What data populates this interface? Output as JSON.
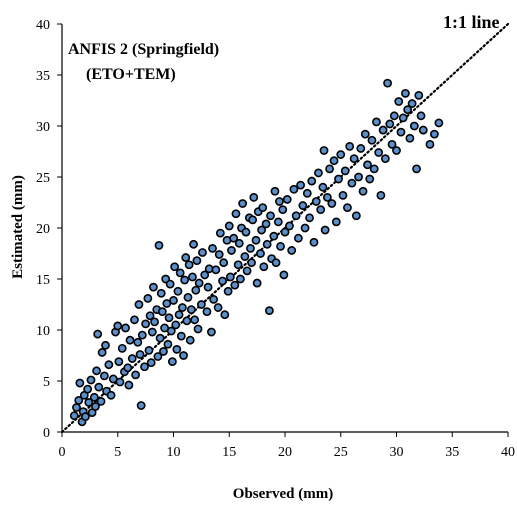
{
  "chart_data": {
    "type": "scatter",
    "title": "ANFIS 2 (Springfield)",
    "subtitle": "(ETO+TEM)",
    "xlabel": "Observed (mm)",
    "ylabel": "Estimated (mm)",
    "xlim": [
      0,
      40
    ],
    "ylim": [
      0,
      40
    ],
    "xticks": [
      "0",
      "5",
      "10",
      "15",
      "20",
      "25",
      "30",
      "35",
      "40"
    ],
    "yticks": [
      "0",
      "5",
      "10",
      "15",
      "20",
      "25",
      "30",
      "35",
      "40"
    ],
    "grid": false,
    "legend": "none",
    "reference_line": {
      "label": "1:1 line",
      "from": [
        0,
        0
      ],
      "to": [
        40,
        40
      ],
      "style": "dotted"
    },
    "marker_color": "#5b8fc9",
    "marker_edge": "#000000",
    "series": [
      {
        "points": [
          [
            1.1,
            1.6
          ],
          [
            1.3,
            2.4
          ],
          [
            1.5,
            3.1
          ],
          [
            1.6,
            4.8
          ],
          [
            1.8,
            1.0
          ],
          [
            1.9,
            2.0
          ],
          [
            2.0,
            3.6
          ],
          [
            2.1,
            1.5
          ],
          [
            2.3,
            4.2
          ],
          [
            2.4,
            2.9
          ],
          [
            2.6,
            5.1
          ],
          [
            2.7,
            1.9
          ],
          [
            2.9,
            3.4
          ],
          [
            3.0,
            2.5
          ],
          [
            3.1,
            6.0
          ],
          [
            3.2,
            9.6
          ],
          [
            3.3,
            4.4
          ],
          [
            3.5,
            3.0
          ],
          [
            3.6,
            7.8
          ],
          [
            3.8,
            5.5
          ],
          [
            3.9,
            8.5
          ],
          [
            4.0,
            4.0
          ],
          [
            4.2,
            6.6
          ],
          [
            4.4,
            3.6
          ],
          [
            4.6,
            5.2
          ],
          [
            4.8,
            9.8
          ],
          [
            5.0,
            10.4
          ],
          [
            5.1,
            6.9
          ],
          [
            5.2,
            4.9
          ],
          [
            5.4,
            8.2
          ],
          [
            5.6,
            5.9
          ],
          [
            5.7,
            10.2
          ],
          [
            5.9,
            6.3
          ],
          [
            6.0,
            4.6
          ],
          [
            6.1,
            9.0
          ],
          [
            6.3,
            7.2
          ],
          [
            6.5,
            11.0
          ],
          [
            6.6,
            5.6
          ],
          [
            6.8,
            8.8
          ],
          [
            6.9,
            12.5
          ],
          [
            7.0,
            7.6
          ],
          [
            7.1,
            2.6
          ],
          [
            7.2,
            9.5
          ],
          [
            7.4,
            6.4
          ],
          [
            7.5,
            10.6
          ],
          [
            7.7,
            13.1
          ],
          [
            7.8,
            8.0
          ],
          [
            7.9,
            11.4
          ],
          [
            8.0,
            6.8
          ],
          [
            8.1,
            9.8
          ],
          [
            8.2,
            14.2
          ],
          [
            8.3,
            10.8
          ],
          [
            8.5,
            12.0
          ],
          [
            8.6,
            7.4
          ],
          [
            8.7,
            18.3
          ],
          [
            8.8,
            9.2
          ],
          [
            8.9,
            13.6
          ],
          [
            9.0,
            11.8
          ],
          [
            9.1,
            7.9
          ],
          [
            9.2,
            10.2
          ],
          [
            9.3,
            15.0
          ],
          [
            9.4,
            12.6
          ],
          [
            9.5,
            8.6
          ],
          [
            9.6,
            11.2
          ],
          [
            9.7,
            14.5
          ],
          [
            9.8,
            9.9
          ],
          [
            9.9,
            6.9
          ],
          [
            10.0,
            12.9
          ],
          [
            10.1,
            16.2
          ],
          [
            10.2,
            10.5
          ],
          [
            10.3,
            8.1
          ],
          [
            10.4,
            13.8
          ],
          [
            10.5,
            11.5
          ],
          [
            10.6,
            15.6
          ],
          [
            10.7,
            9.4
          ],
          [
            10.8,
            12.2
          ],
          [
            10.9,
            7.5
          ],
          [
            11.0,
            14.9
          ],
          [
            11.1,
            17.1
          ],
          [
            11.2,
            10.9
          ],
          [
            11.3,
            13.2
          ],
          [
            11.4,
            16.4
          ],
          [
            11.5,
            9.0
          ],
          [
            11.6,
            12.0
          ],
          [
            11.7,
            15.2
          ],
          [
            11.8,
            18.4
          ],
          [
            11.9,
            11.0
          ],
          [
            12.0,
            13.9
          ],
          [
            12.1,
            16.8
          ],
          [
            12.2,
            10.1
          ],
          [
            12.3,
            14.6
          ],
          [
            12.5,
            12.5
          ],
          [
            12.6,
            17.6
          ],
          [
            12.8,
            15.4
          ],
          [
            13.0,
            11.8
          ],
          [
            13.1,
            14.2
          ],
          [
            13.2,
            16.0
          ],
          [
            13.4,
            9.8
          ],
          [
            13.5,
            18.0
          ],
          [
            13.6,
            13.0
          ],
          [
            13.8,
            15.9
          ],
          [
            14.0,
            12.2
          ],
          [
            14.1,
            17.4
          ],
          [
            14.2,
            19.5
          ],
          [
            14.4,
            14.8
          ],
          [
            14.5,
            16.6
          ],
          [
            14.6,
            11.5
          ],
          [
            14.8,
            18.8
          ],
          [
            14.9,
            13.8
          ],
          [
            15.0,
            20.2
          ],
          [
            15.1,
            15.2
          ],
          [
            15.2,
            17.8
          ],
          [
            15.4,
            19.0
          ],
          [
            15.5,
            14.4
          ],
          [
            15.6,
            21.4
          ],
          [
            15.8,
            16.4
          ],
          [
            15.9,
            18.5
          ],
          [
            16.0,
            15.0
          ],
          [
            16.1,
            20.0
          ],
          [
            16.2,
            22.4
          ],
          [
            16.4,
            17.2
          ],
          [
            16.5,
            19.6
          ],
          [
            16.6,
            15.8
          ],
          [
            16.8,
            21.0
          ],
          [
            16.9,
            18.0
          ],
          [
            17.0,
            16.6
          ],
          [
            17.1,
            20.8
          ],
          [
            17.2,
            23.0
          ],
          [
            17.4,
            18.8
          ],
          [
            17.5,
            14.6
          ],
          [
            17.6,
            21.6
          ],
          [
            17.8,
            17.5
          ],
          [
            17.9,
            19.8
          ],
          [
            18.0,
            22.0
          ],
          [
            18.1,
            16.2
          ],
          [
            18.3,
            20.4
          ],
          [
            18.4,
            18.4
          ],
          [
            18.6,
            11.9
          ],
          [
            18.7,
            21.2
          ],
          [
            18.8,
            17.0
          ],
          [
            19.0,
            19.2
          ],
          [
            19.1,
            23.6
          ],
          [
            19.2,
            16.6
          ],
          [
            19.4,
            20.6
          ],
          [
            19.5,
            22.6
          ],
          [
            19.6,
            18.2
          ],
          [
            19.8,
            21.8
          ],
          [
            19.9,
            15.4
          ],
          [
            20.0,
            19.6
          ],
          [
            20.2,
            22.8
          ],
          [
            20.4,
            20.2
          ],
          [
            20.6,
            17.8
          ],
          [
            20.8,
            23.8
          ],
          [
            21.0,
            21.2
          ],
          [
            21.2,
            19.0
          ],
          [
            21.4,
            24.2
          ],
          [
            21.6,
            22.2
          ],
          [
            21.8,
            20.0
          ],
          [
            22.0,
            23.4
          ],
          [
            22.2,
            21.0
          ],
          [
            22.4,
            24.6
          ],
          [
            22.6,
            18.6
          ],
          [
            22.8,
            22.6
          ],
          [
            23.0,
            25.4
          ],
          [
            23.2,
            21.8
          ],
          [
            23.4,
            24.0
          ],
          [
            23.5,
            27.6
          ],
          [
            23.6,
            19.8
          ],
          [
            23.8,
            23.0
          ],
          [
            24.0,
            25.8
          ],
          [
            24.2,
            22.4
          ],
          [
            24.4,
            26.6
          ],
          [
            24.6,
            20.6
          ],
          [
            24.8,
            24.8
          ],
          [
            25.0,
            27.2
          ],
          [
            25.2,
            23.2
          ],
          [
            25.4,
            25.6
          ],
          [
            25.6,
            22.0
          ],
          [
            25.8,
            28.0
          ],
          [
            26.0,
            24.4
          ],
          [
            26.2,
            26.8
          ],
          [
            26.4,
            21.2
          ],
          [
            26.6,
            25.0
          ],
          [
            26.8,
            27.8
          ],
          [
            27.0,
            23.6
          ],
          [
            27.2,
            29.2
          ],
          [
            27.4,
            26.2
          ],
          [
            27.6,
            24.8
          ],
          [
            27.8,
            28.6
          ],
          [
            28.0,
            25.8
          ],
          [
            28.2,
            30.4
          ],
          [
            28.4,
            27.4
          ],
          [
            28.6,
            23.2
          ],
          [
            28.8,
            29.6
          ],
          [
            29.0,
            26.8
          ],
          [
            29.2,
            34.2
          ],
          [
            29.4,
            30.2
          ],
          [
            29.6,
            28.2
          ],
          [
            29.8,
            31.0
          ],
          [
            30.0,
            27.6
          ],
          [
            30.2,
            32.4
          ],
          [
            30.4,
            29.4
          ],
          [
            30.6,
            30.8
          ],
          [
            30.8,
            33.2
          ],
          [
            31.0,
            31.6
          ],
          [
            31.2,
            28.8
          ],
          [
            31.4,
            32.2
          ],
          [
            31.6,
            30.0
          ],
          [
            31.8,
            25.8
          ],
          [
            32.0,
            33.0
          ],
          [
            32.2,
            31.0
          ],
          [
            32.4,
            29.6
          ],
          [
            33.0,
            28.2
          ],
          [
            33.4,
            29.2
          ],
          [
            33.8,
            30.3
          ]
        ]
      }
    ]
  }
}
